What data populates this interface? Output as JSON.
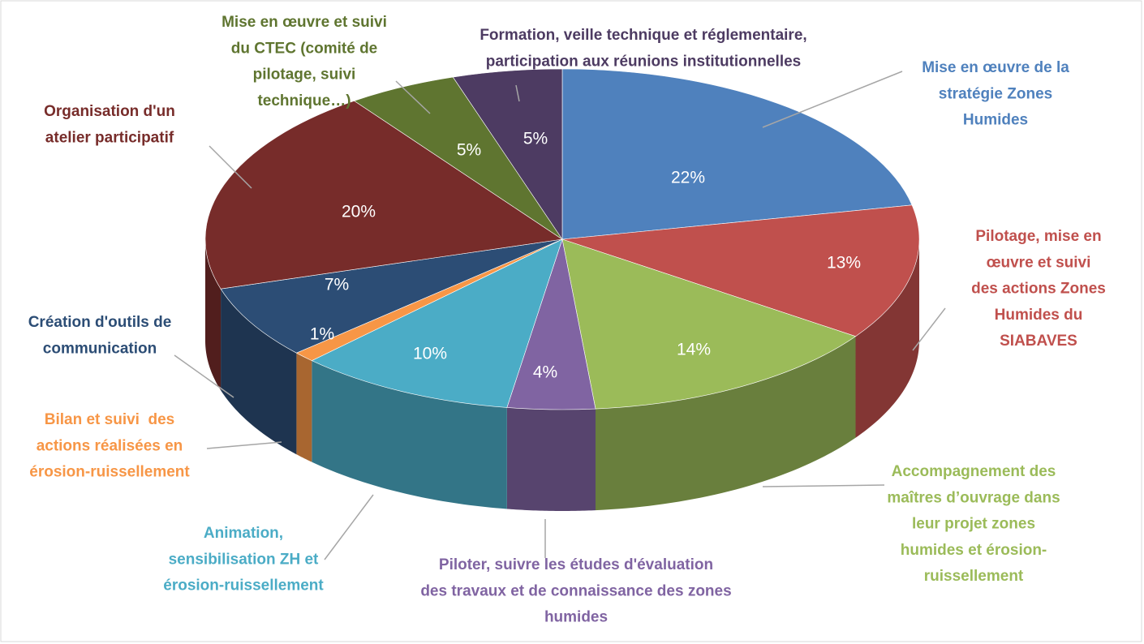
{
  "chart_data": {
    "type": "pie3d",
    "categories": [
      [
        "Mise en œuvre de la",
        "stratégie Zones",
        "Humides"
      ],
      [
        "Pilotage, mise en",
        "œuvre et suivi",
        "des actions Zones",
        "Humides du",
        "SIABAVES"
      ],
      [
        "Accompagnement des",
        "maîtres d’ouvrage dans",
        "leur projet zones",
        "humides et érosion-",
        "ruissellement"
      ],
      [
        "Piloter, suivre les études d'évaluation",
        "des travaux et de connaissance des zones",
        "humides"
      ],
      [
        "Animation,",
        "sensibilisation ZH et",
        "érosion-ruissellement"
      ],
      [
        "Bilan et suivi  des",
        "actions réalisées en",
        "érosion-ruissellement"
      ],
      [
        "Création d'outils de",
        "communication"
      ],
      [
        "Organisation d'un",
        "atelier participatif"
      ],
      [
        "Mise en œuvre et suivi",
        "du CTEC (comité de",
        "pilotage, suivi",
        "technique…)"
      ],
      [
        "Formation, veille technique et réglementaire,",
        "participation aux réunions institutionnelles"
      ]
    ],
    "values": [
      22,
      13,
      14,
      4,
      10,
      1,
      7,
      20,
      5,
      5
    ],
    "value_labels": [
      "22%",
      "13%",
      "14%",
      "4%",
      "10%",
      "1%",
      "7%",
      "20%",
      "5%",
      "5%"
    ],
    "colors": [
      "#4f81bd",
      "#c0504d",
      "#9bbb59",
      "#8064a2",
      "#4bacc6",
      "#f79646",
      "#2c4d75",
      "#772c2a",
      "#5f7530",
      "#4d3b62"
    ]
  }
}
